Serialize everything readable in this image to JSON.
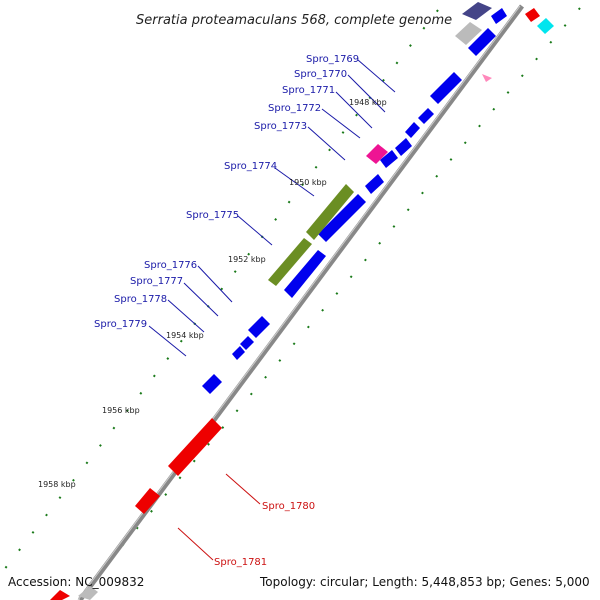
{
  "title": "Serratia proteamaculans 568, complete genome",
  "footer": {
    "accession": "Accession: NC_009832",
    "topology": "Topology: circular; Length: 5,448,853 bp; Genes: 5,000"
  },
  "kbp_marks": [
    "1948 kbp",
    "1950 kbp",
    "1952 kbp",
    "1954 kbp",
    "1956 kbp",
    "1958 kbp"
  ],
  "genes_top": [
    "Spro_1769",
    "Spro_1770",
    "Spro_1771",
    "Spro_1772",
    "Spro_1773",
    "Spro_1774",
    "Spro_1775",
    "Spro_1776",
    "Spro_1777",
    "Spro_1778",
    "Spro_1779"
  ],
  "genes_bottom": [
    "Spro_1780",
    "Spro_1781"
  ],
  "colors": {
    "blue_gene": "#0000ee",
    "red_gene": "#ee0000",
    "olive_gene": "#6b8e23",
    "magenta_gene": "#ee1493",
    "cyan_gene": "#00e5ee",
    "grey_gene": "#bbbbbb",
    "navy_gene": "#444488",
    "tick_green": "#1a7a1a",
    "label_blue": "#1a1aa8",
    "label_red": "#cc1111",
    "backbone": "#888888"
  }
}
